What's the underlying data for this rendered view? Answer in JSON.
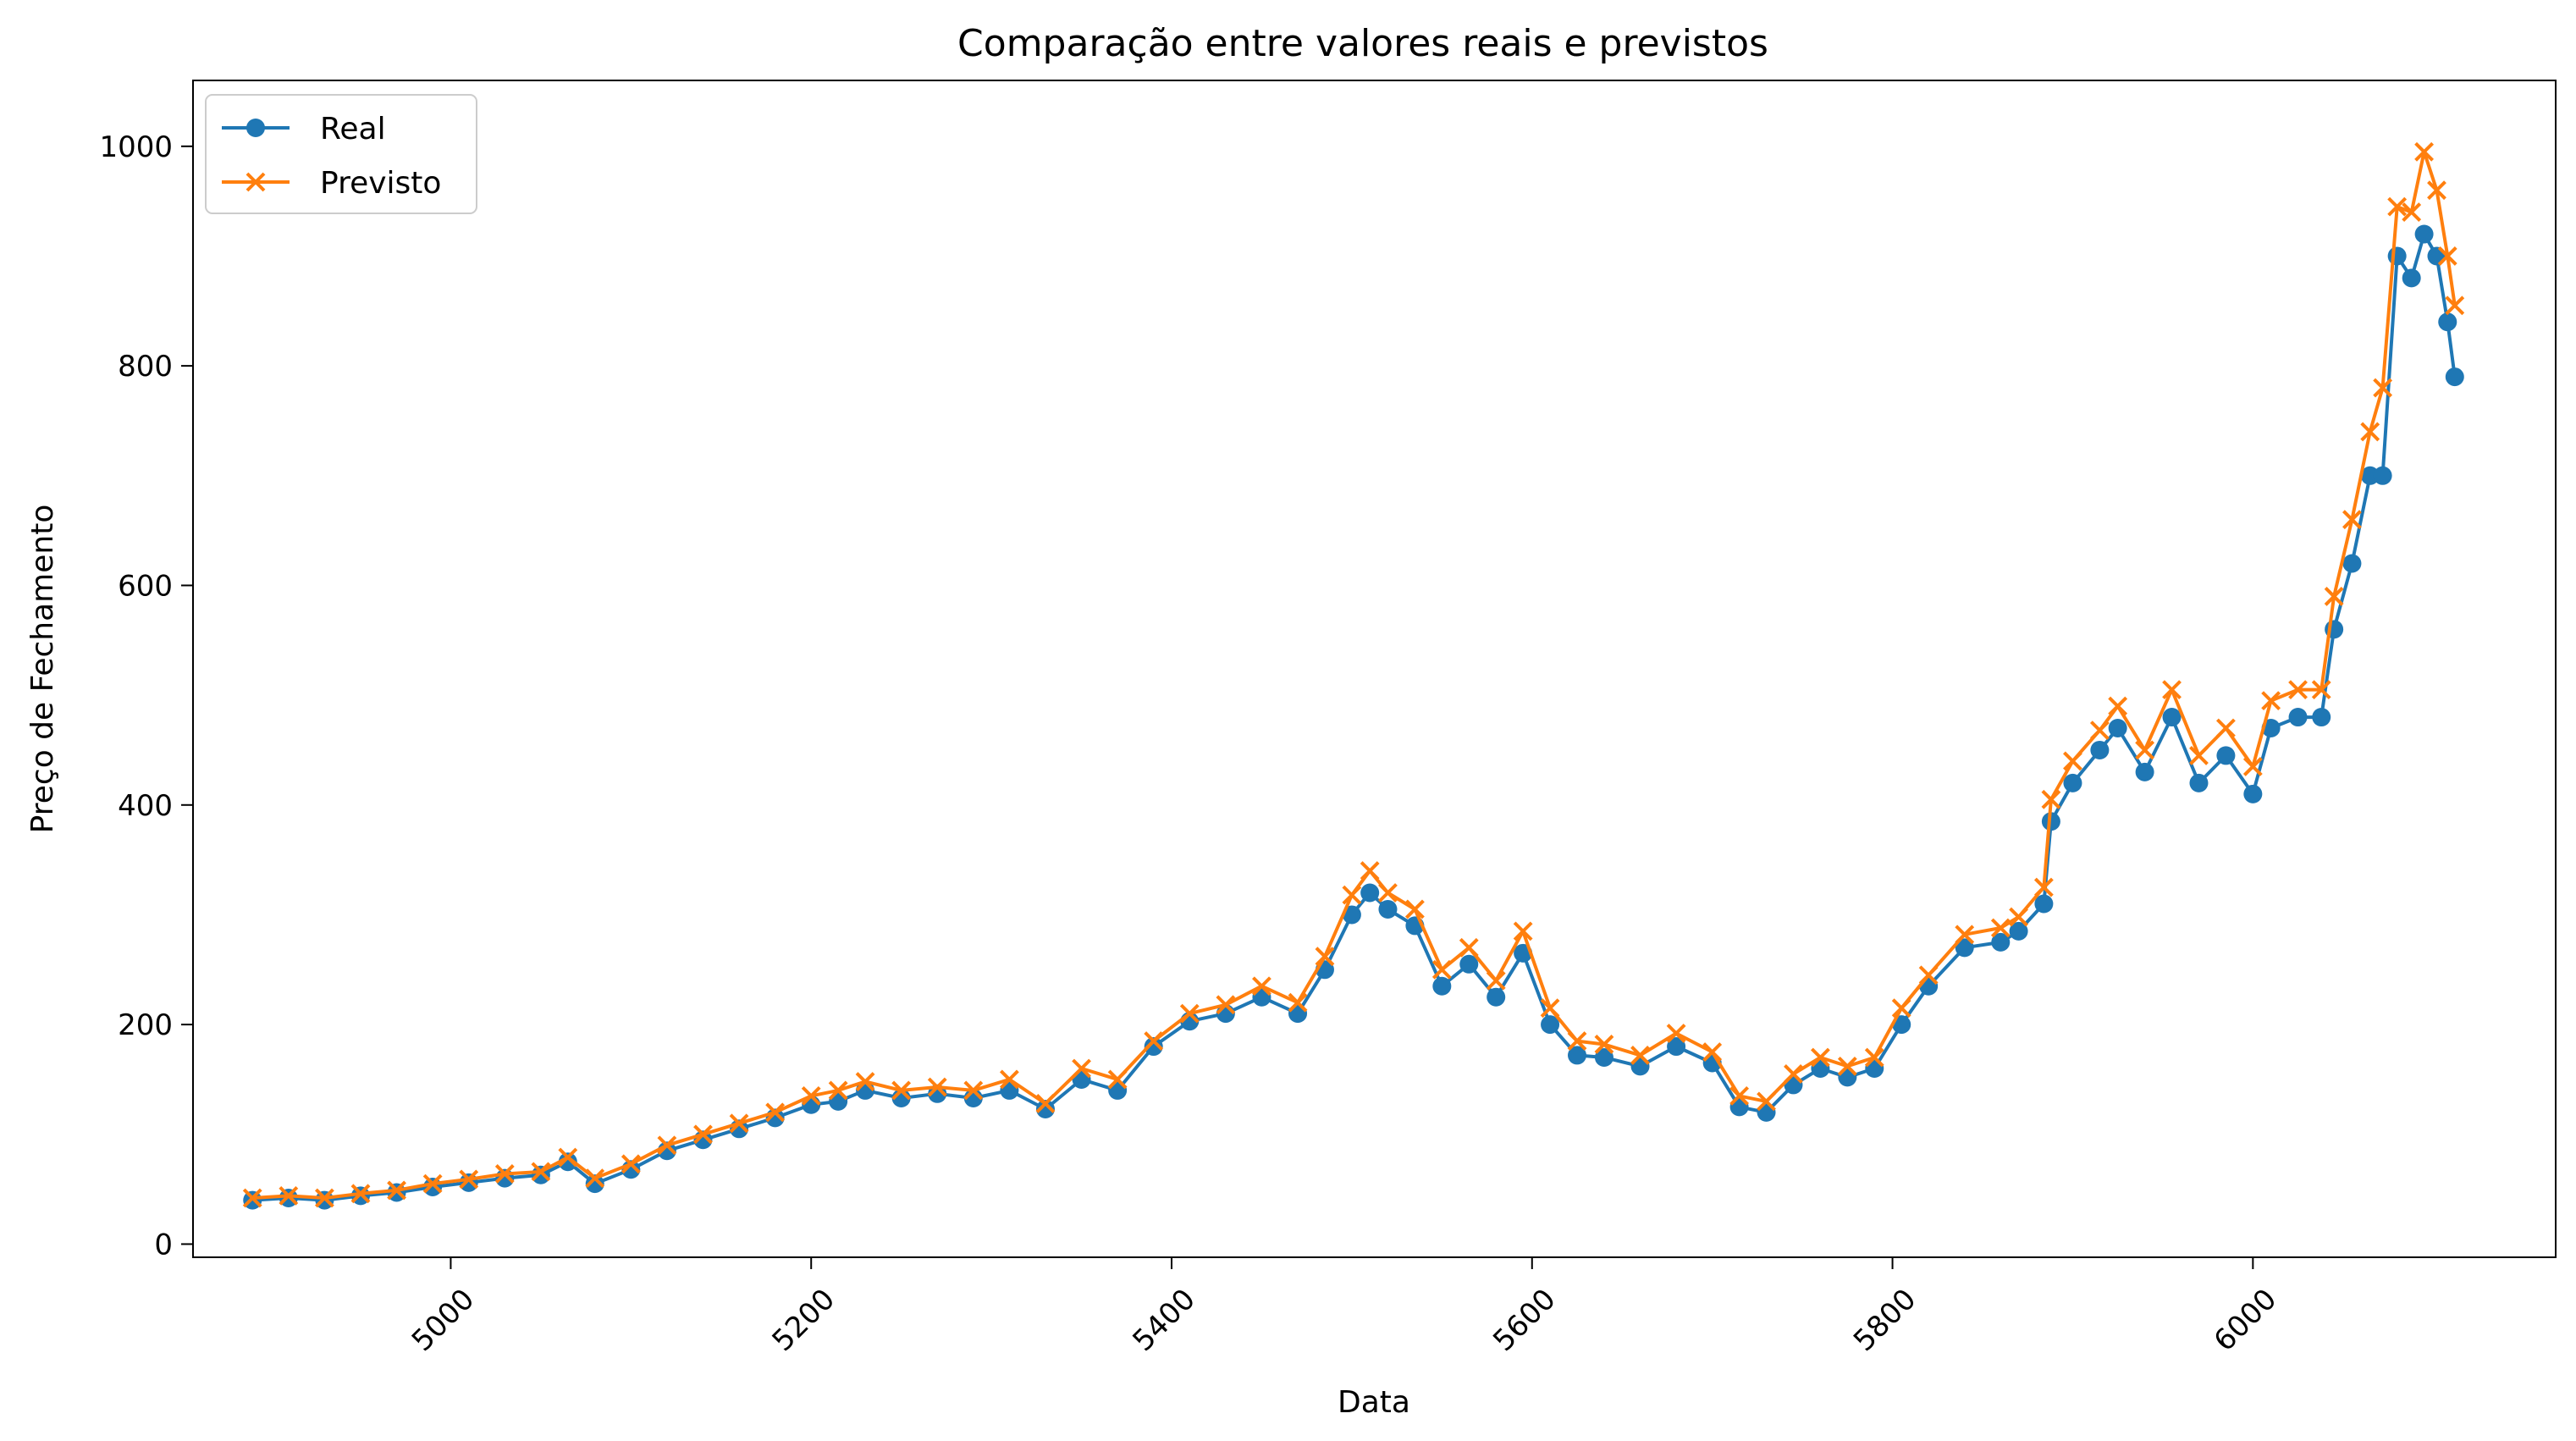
{
  "chart_data": {
    "type": "line",
    "title": "Comparação entre valores reais e previstos",
    "xlabel": "Data",
    "ylabel": "Preço de Fechamento",
    "xlim": [
      4857,
      6168
    ],
    "ylim": [
      -12,
      1060
    ],
    "x_ticks": [
      "5000",
      "5200",
      "5400",
      "5600",
      "5800",
      "6000"
    ],
    "y_ticks": [
      "0",
      "200",
      "400",
      "600",
      "800",
      "1000"
    ],
    "grid": false,
    "legend_position": "upper-left",
    "colors": {
      "real": "#1f77b4",
      "previsto": "#ff7f0e"
    },
    "x": [
      4890,
      4910,
      4930,
      4950,
      4970,
      4990,
      5010,
      5030,
      5050,
      5065,
      5080,
      5100,
      5120,
      5140,
      5160,
      5180,
      5200,
      5215,
      5230,
      5250,
      5270,
      5290,
      5310,
      5330,
      5350,
      5370,
      5390,
      5410,
      5430,
      5450,
      5470,
      5485,
      5500,
      5510,
      5520,
      5535,
      5550,
      5565,
      5580,
      5595,
      5610,
      5625,
      5640,
      5660,
      5680,
      5700,
      5715,
      5730,
      5745,
      5760,
      5775,
      5790,
      5805,
      5820,
      5840,
      5860,
      5870,
      5884,
      5888,
      5900,
      5915,
      5925,
      5940,
      5955,
      5970,
      5985,
      6000,
      6010,
      6025,
      6038,
      6045,
      6055,
      6065,
      6072,
      6080,
      6088,
      6095,
      6102,
      6108,
      6112
    ],
    "series": [
      {
        "name": "Real",
        "values": [
          40,
          42,
          40,
          44,
          47,
          52,
          56,
          60,
          63,
          75,
          55,
          68,
          85,
          95,
          105,
          115,
          127,
          130,
          140,
          133,
          137,
          133,
          140,
          123,
          150,
          140,
          180,
          203,
          210,
          225,
          210,
          250,
          300,
          320,
          305,
          290,
          235,
          255,
          225,
          265,
          200,
          172,
          170,
          162,
          180,
          165,
          125,
          120,
          145,
          160,
          152,
          160,
          200,
          235,
          270,
          275,
          285,
          310,
          385,
          420,
          450,
          470,
          430,
          480,
          420,
          445,
          410,
          470,
          480,
          480,
          560,
          620,
          700,
          700,
          900,
          880,
          920,
          900,
          840,
          790
        ]
      },
      {
        "name": "Previsto",
        "values": [
          42,
          44,
          42,
          46,
          49,
          55,
          59,
          64,
          66,
          79,
          60,
          73,
          90,
          100,
          110,
          120,
          135,
          140,
          148,
          140,
          143,
          140,
          150,
          128,
          160,
          150,
          185,
          210,
          218,
          235,
          220,
          262,
          318,
          340,
          320,
          305,
          250,
          270,
          240,
          285,
          215,
          185,
          182,
          172,
          192,
          175,
          135,
          130,
          155,
          170,
          162,
          170,
          215,
          245,
          282,
          288,
          298,
          325,
          405,
          440,
          468,
          490,
          450,
          505,
          445,
          470,
          435,
          495,
          505,
          505,
          590,
          660,
          740,
          780,
          945,
          940,
          995,
          960,
          900,
          855
        ]
      }
    ]
  }
}
